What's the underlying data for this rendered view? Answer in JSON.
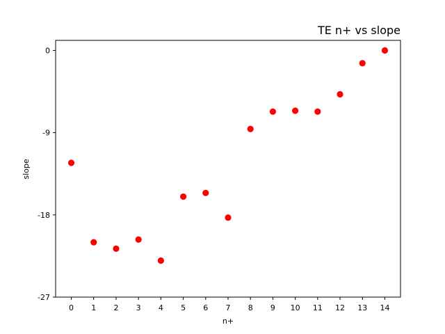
{
  "chart_data": {
    "type": "scatter",
    "title": "TE n+ vs slope",
    "xlabel": "n+",
    "ylabel": "slope",
    "x": [
      0,
      1,
      2,
      3,
      4,
      5,
      6,
      7,
      8,
      9,
      10,
      11,
      12,
      13,
      14
    ],
    "series": [
      {
        "values": [
          -12.3,
          -21.0,
          -21.7,
          -20.7,
          -23.0,
          -16.0,
          -15.6,
          -18.3,
          -8.6,
          -6.7,
          -6.6,
          -6.7,
          -4.8,
          -1.4,
          0.0
        ],
        "color": "#ff0000"
      }
    ],
    "xticks": [
      "0",
      "1",
      "2",
      "3",
      "4",
      "5",
      "6",
      "7",
      "8",
      "9",
      "10",
      "11",
      "12",
      "13",
      "14"
    ],
    "yticks": [
      "0",
      "-9",
      "-18",
      "-27"
    ],
    "xlim": [
      -0.7,
      14.7
    ],
    "ylim": [
      -27,
      1.1
    ],
    "grid": false,
    "legend": false
  }
}
